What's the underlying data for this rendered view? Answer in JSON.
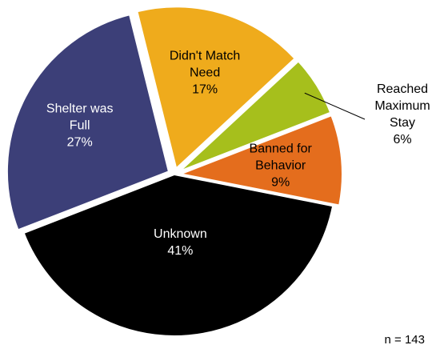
{
  "chart_data": {
    "type": "pie",
    "title": "",
    "slices": [
      {
        "label_lines": [
          "Didn't Match",
          "Need"
        ],
        "pct_label": "17%",
        "value": 17,
        "color": "#efab1c",
        "label_color": "#000000",
        "explode": 1
      },
      {
        "label_lines": [
          "Reached",
          "Maximum",
          "Stay"
        ],
        "pct_label": "6%",
        "value": 6,
        "color": "#a6bf1c",
        "label_color": "#000000",
        "explode": 1,
        "outside": true
      },
      {
        "label_lines": [
          "Banned for",
          "Behavior"
        ],
        "pct_label": "9%",
        "value": 9,
        "color": "#e46d1d",
        "label_color": "#000000",
        "explode": 1
      },
      {
        "label_lines": [
          "Unknown"
        ],
        "pct_label": "41%",
        "value": 41,
        "color": "#000000",
        "label_color": "#ffffff",
        "explode": 0
      },
      {
        "label_lines": [
          "Shelter was",
          "Full"
        ],
        "pct_label": "27%",
        "value": 27,
        "color": "#3c3f78",
        "label_color": "#ffffff",
        "explode": 1
      }
    ],
    "legend": "none"
  },
  "note": "n = 143"
}
